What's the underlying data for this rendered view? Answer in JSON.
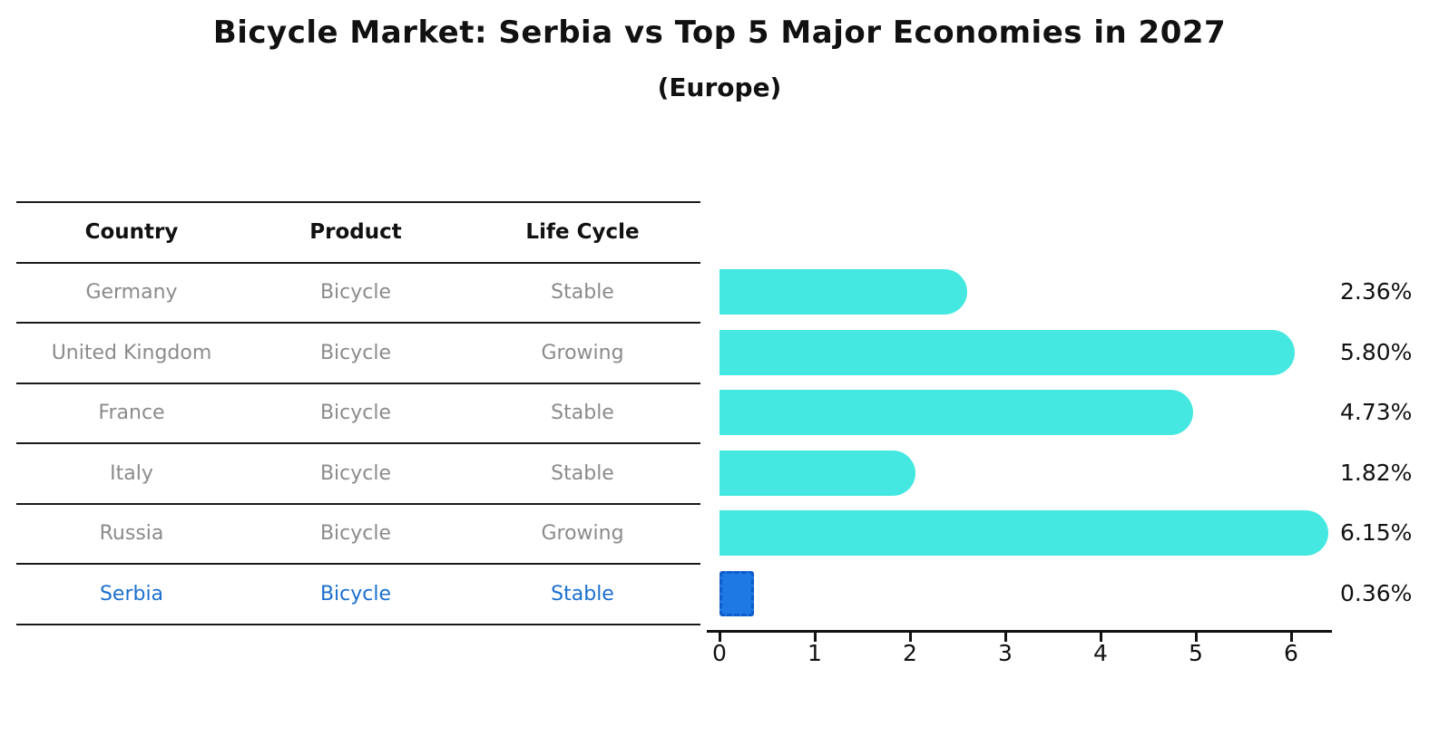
{
  "title": "Bicycle Market: Serbia vs Top 5 Major Economies in 2027",
  "subtitle": "(Europe)",
  "table": {
    "headers": [
      "Country",
      "Product",
      "Life Cycle"
    ],
    "rows": [
      {
        "country": "Germany",
        "product": "Bicycle",
        "life_cycle": "Stable",
        "highlight": false
      },
      {
        "country": "United Kingdom",
        "product": "Bicycle",
        "life_cycle": "Growing",
        "highlight": false
      },
      {
        "country": "France",
        "product": "Bicycle",
        "life_cycle": "Stable",
        "highlight": false
      },
      {
        "country": "Italy",
        "product": "Bicycle",
        "life_cycle": "Stable",
        "highlight": false
      },
      {
        "country": "Russia",
        "product": "Bicycle",
        "life_cycle": "Growing",
        "highlight": false
      },
      {
        "country": "Serbia",
        "product": "Bicycle",
        "life_cycle": "Stable",
        "highlight": true
      }
    ]
  },
  "chart_data": {
    "type": "bar",
    "orientation": "horizontal",
    "title": "Bicycle Market: Serbia vs Top 5 Major Economies in 2027 (Europe)",
    "categories": [
      "Germany",
      "United Kingdom",
      "France",
      "Italy",
      "Russia",
      "Serbia"
    ],
    "values": [
      2.36,
      5.8,
      4.73,
      1.82,
      6.15,
      0.36
    ],
    "value_labels": [
      "2.36%",
      "5.80%",
      "4.73%",
      "1.82%",
      "6.15%",
      "0.36%"
    ],
    "xlabel": "",
    "ylabel": "",
    "xlim": [
      0,
      6.4
    ],
    "xticks": [
      0,
      1,
      2,
      3,
      4,
      5,
      6
    ],
    "grid": false,
    "legend": false,
    "highlight_category": "Serbia",
    "colors": {
      "bar_default": "#45e8e0",
      "bar_highlight_fill": "#1e79e4",
      "bar_highlight_border": "#0f5ccb",
      "row_text": "#8b8b8b",
      "highlight_text": "#1b6fce",
      "text": "#111111"
    }
  }
}
